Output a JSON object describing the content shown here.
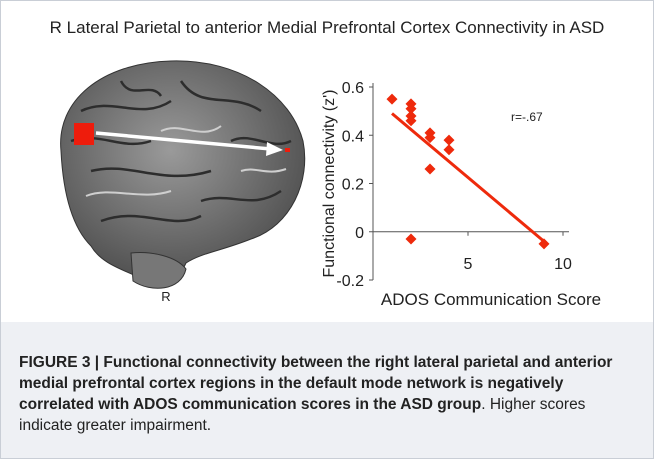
{
  "chart_data": {
    "type": "scatter",
    "title": "R Lateral Parietal to anterior Medial Prefrontal Cortex Connectivity in ASD",
    "x_label": "ADOS Communication Score",
    "y_label": "Functional connectivity (z')",
    "x": [
      1,
      2,
      2,
      2,
      2,
      2,
      3,
      3,
      3,
      4,
      4,
      9
    ],
    "values": [
      0.55,
      0.53,
      0.51,
      0.48,
      0.46,
      -0.03,
      0.41,
      0.39,
      0.26,
      0.38,
      0.34,
      -0.05
    ],
    "color": "#ee2a0c",
    "trend_line": {
      "x": [
        1,
        9
      ],
      "values": [
        0.49,
        -0.04
      ]
    },
    "annotation": "r=-.67",
    "xlim": [
      0,
      10
    ],
    "xticks": [
      5,
      10
    ],
    "ylim": [
      -0.2,
      0.6
    ],
    "yticks": [
      -0.2,
      0,
      0.2,
      0.4,
      0.6
    ]
  },
  "brain_label": "R",
  "caption": {
    "bold": "FIGURE 3 | Functional connectivity between the right lateral parietal and anterior medial prefrontal cortex regions in the default mode network is negatively correlated with ADOS communication scores in the ASD group",
    "text": ". Higher scores indicate greater impairment."
  }
}
